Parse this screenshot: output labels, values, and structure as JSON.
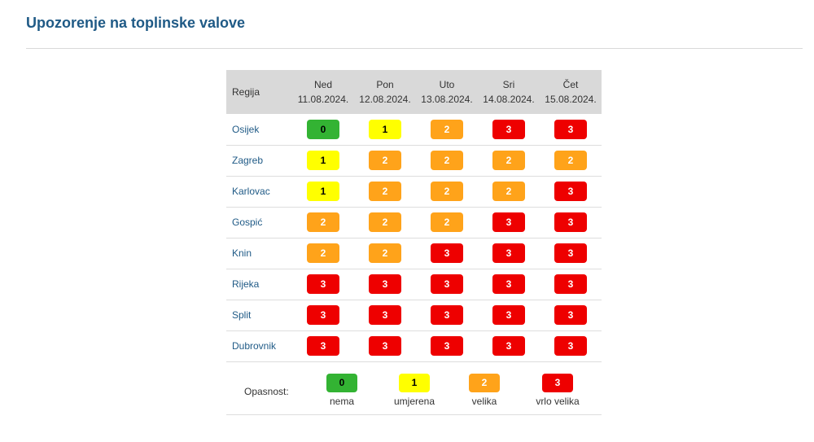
{
  "page": {
    "title": "Upozorenje na toplinske valove"
  },
  "table": {
    "region_header": "Regija",
    "days": [
      {
        "day": "Ned",
        "date": "11.08.2024."
      },
      {
        "day": "Pon",
        "date": "12.08.2024."
      },
      {
        "day": "Uto",
        "date": "13.08.2024."
      },
      {
        "day": "Sri",
        "date": "14.08.2024."
      },
      {
        "day": "Čet",
        "date": "15.08.2024."
      }
    ],
    "rows": [
      {
        "region": "Osijek",
        "levels": [
          "0",
          "1",
          "2",
          "3",
          "3"
        ]
      },
      {
        "region": "Zagreb",
        "levels": [
          "1",
          "2",
          "2",
          "2",
          "2"
        ]
      },
      {
        "region": "Karlovac",
        "levels": [
          "1",
          "2",
          "2",
          "2",
          "3"
        ]
      },
      {
        "region": "Gospić",
        "levels": [
          "2",
          "2",
          "2",
          "3",
          "3"
        ]
      },
      {
        "region": "Knin",
        "levels": [
          "2",
          "2",
          "3",
          "3",
          "3"
        ]
      },
      {
        "region": "Rijeka",
        "levels": [
          "3",
          "3",
          "3",
          "3",
          "3"
        ]
      },
      {
        "region": "Split",
        "levels": [
          "3",
          "3",
          "3",
          "3",
          "3"
        ]
      },
      {
        "region": "Dubrovnik",
        "levels": [
          "3",
          "3",
          "3",
          "3",
          "3"
        ]
      }
    ]
  },
  "legend": {
    "label": "Opasnost:",
    "items": [
      {
        "level": "0",
        "text": "nema"
      },
      {
        "level": "1",
        "text": "umjerena"
      },
      {
        "level": "2",
        "text": "velika"
      },
      {
        "level": "3",
        "text": "vrlo velika"
      }
    ]
  },
  "colors": {
    "title": "#1f5a86",
    "header_bg": "#d9d9d9",
    "level_0": "#33b333",
    "level_1": "#ffff00",
    "level_2": "#ffa31a",
    "level_3": "#ee0000"
  }
}
